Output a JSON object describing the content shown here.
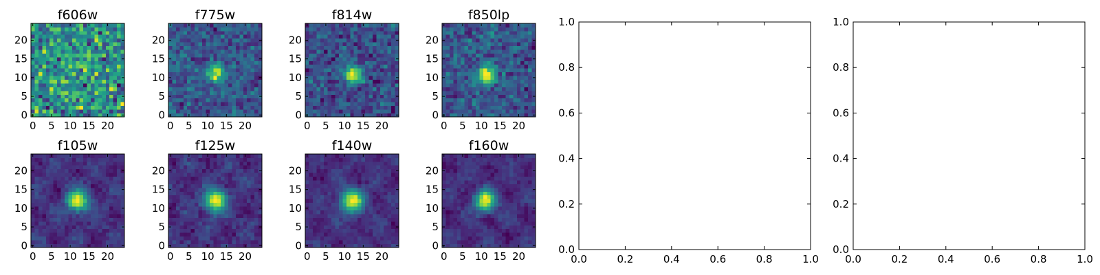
{
  "figure": {
    "colormap": "viridis",
    "frame_color": "#000000",
    "background": "#ffffff"
  },
  "chart_data": [
    {
      "type": "heatmap",
      "title": "f606w",
      "xlim": [
        -0.5,
        24.5
      ],
      "ylim": [
        -0.5,
        24.5
      ],
      "xticks": [
        "0",
        "5",
        "10",
        "15",
        "20"
      ],
      "yticks": [
        "0",
        "5",
        "10",
        "15",
        "20"
      ],
      "grid_size": [
        25,
        25
      ],
      "source_peak": [
        11,
        11
      ],
      "source_strength": 0.06,
      "source_width": 2.2,
      "noise": 0.85
    },
    {
      "type": "heatmap",
      "title": "f775w",
      "xlim": [
        -0.5,
        24.5
      ],
      "ylim": [
        -0.5,
        24.5
      ],
      "xticks": [
        "0",
        "5",
        "10",
        "15",
        "20"
      ],
      "yticks": [
        "0",
        "5",
        "10",
        "15",
        "20"
      ],
      "grid_size": [
        25,
        25
      ],
      "source_peak": [
        12,
        11
      ],
      "source_strength": 0.55,
      "source_width": 1.6,
      "noise": 0.7
    },
    {
      "type": "heatmap",
      "title": "f814w",
      "xlim": [
        -0.5,
        24.5
      ],
      "ylim": [
        -0.5,
        24.5
      ],
      "xticks": [
        "0",
        "5",
        "10",
        "15",
        "20"
      ],
      "yticks": [
        "0",
        "5",
        "10",
        "15",
        "20"
      ],
      "grid_size": [
        25,
        25
      ],
      "source_peak": [
        12,
        11
      ],
      "source_strength": 0.6,
      "source_width": 1.6,
      "noise": 0.7
    },
    {
      "type": "heatmap",
      "title": "f850lp",
      "xlim": [
        -0.5,
        24.5
      ],
      "ylim": [
        -0.5,
        24.5
      ],
      "xticks": [
        "0",
        "5",
        "10",
        "15",
        "20"
      ],
      "yticks": [
        "0",
        "5",
        "10",
        "15",
        "20"
      ],
      "grid_size": [
        25,
        25
      ],
      "source_peak": [
        11,
        11
      ],
      "source_strength": 0.6,
      "source_width": 1.8,
      "noise": 0.7
    },
    {
      "type": "heatmap",
      "title": "f105w",
      "xlim": [
        -0.5,
        24.5
      ],
      "ylim": [
        -0.5,
        24.5
      ],
      "xticks": [
        "0",
        "5",
        "10",
        "15",
        "20"
      ],
      "yticks": [
        "0",
        "5",
        "10",
        "15",
        "20"
      ],
      "grid_size": [
        25,
        25
      ],
      "source_peak": [
        12,
        12
      ],
      "source_strength": 0.85,
      "source_width": 2.0,
      "noise": 0.35
    },
    {
      "type": "heatmap",
      "title": "f125w",
      "xlim": [
        -0.5,
        24.5
      ],
      "ylim": [
        -0.5,
        24.5
      ],
      "xticks": [
        "0",
        "5",
        "10",
        "15",
        "20"
      ],
      "yticks": [
        "0",
        "5",
        "10",
        "15",
        "20"
      ],
      "grid_size": [
        25,
        25
      ],
      "source_peak": [
        12,
        12
      ],
      "source_strength": 0.85,
      "source_width": 2.0,
      "noise": 0.35
    },
    {
      "type": "heatmap",
      "title": "f140w",
      "xlim": [
        -0.5,
        24.5
      ],
      "ylim": [
        -0.5,
        24.5
      ],
      "xticks": [
        "0",
        "5",
        "10",
        "15",
        "20"
      ],
      "yticks": [
        "0",
        "5",
        "10",
        "15",
        "20"
      ],
      "grid_size": [
        25,
        25
      ],
      "source_peak": [
        12,
        12
      ],
      "source_strength": 0.9,
      "source_width": 2.1,
      "noise": 0.3
    },
    {
      "type": "heatmap",
      "title": "f160w",
      "xlim": [
        -0.5,
        24.5
      ],
      "ylim": [
        -0.5,
        24.5
      ],
      "xticks": [
        "0",
        "5",
        "10",
        "15",
        "20"
      ],
      "yticks": [
        "0",
        "5",
        "10",
        "15",
        "20"
      ],
      "grid_size": [
        25,
        25
      ],
      "source_peak": [
        11,
        12
      ],
      "source_strength": 0.9,
      "source_width": 1.9,
      "noise": 0.3
    },
    {
      "type": "scatter",
      "title": "",
      "x": [],
      "y": [],
      "xlim": [
        0.0,
        1.0
      ],
      "ylim": [
        0.0,
        1.0
      ],
      "xticks": [
        "0.0",
        "0.2",
        "0.4",
        "0.6",
        "0.8",
        "1.0"
      ],
      "yticks": [
        "0.0",
        "0.2",
        "0.4",
        "0.6",
        "0.8",
        "1.0"
      ]
    },
    {
      "type": "scatter",
      "title": "",
      "x": [],
      "y": [],
      "xlim": [
        0.0,
        1.0
      ],
      "ylim": [
        0.0,
        1.0
      ],
      "xticks": [
        "0.0",
        "0.2",
        "0.4",
        "0.6",
        "0.8",
        "1.0"
      ],
      "yticks": [
        "0.0",
        "0.2",
        "0.4",
        "0.6",
        "0.8",
        "1.0"
      ]
    }
  ]
}
